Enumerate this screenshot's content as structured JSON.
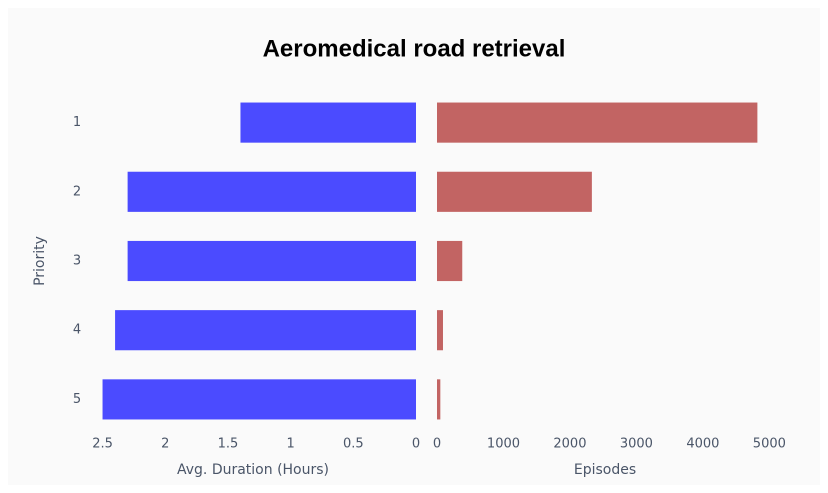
{
  "chart_data": [
    {
      "type": "hbar",
      "title": "Aeromedical road retrieval",
      "ylabel": "Priority",
      "xlabel": "Avg. Duration (Hours)",
      "categories": [
        "1",
        "2",
        "3",
        "4",
        "5"
      ],
      "values": [
        1.4,
        2.3,
        2.3,
        2.4,
        2.5
      ],
      "color": "#4b4bff",
      "xlim": [
        2.6,
        0
      ],
      "xticks": [
        2.5,
        2,
        1.5,
        1,
        0.5,
        0
      ]
    },
    {
      "type": "hbar",
      "xlabel": "Episodes",
      "values": [
        4820,
        2330,
        380,
        90,
        50
      ],
      "color": "#c26463",
      "xlim": [
        0,
        5100
      ],
      "xticks": [
        0,
        1000,
        2000,
        3000,
        4000,
        5000
      ]
    }
  ]
}
